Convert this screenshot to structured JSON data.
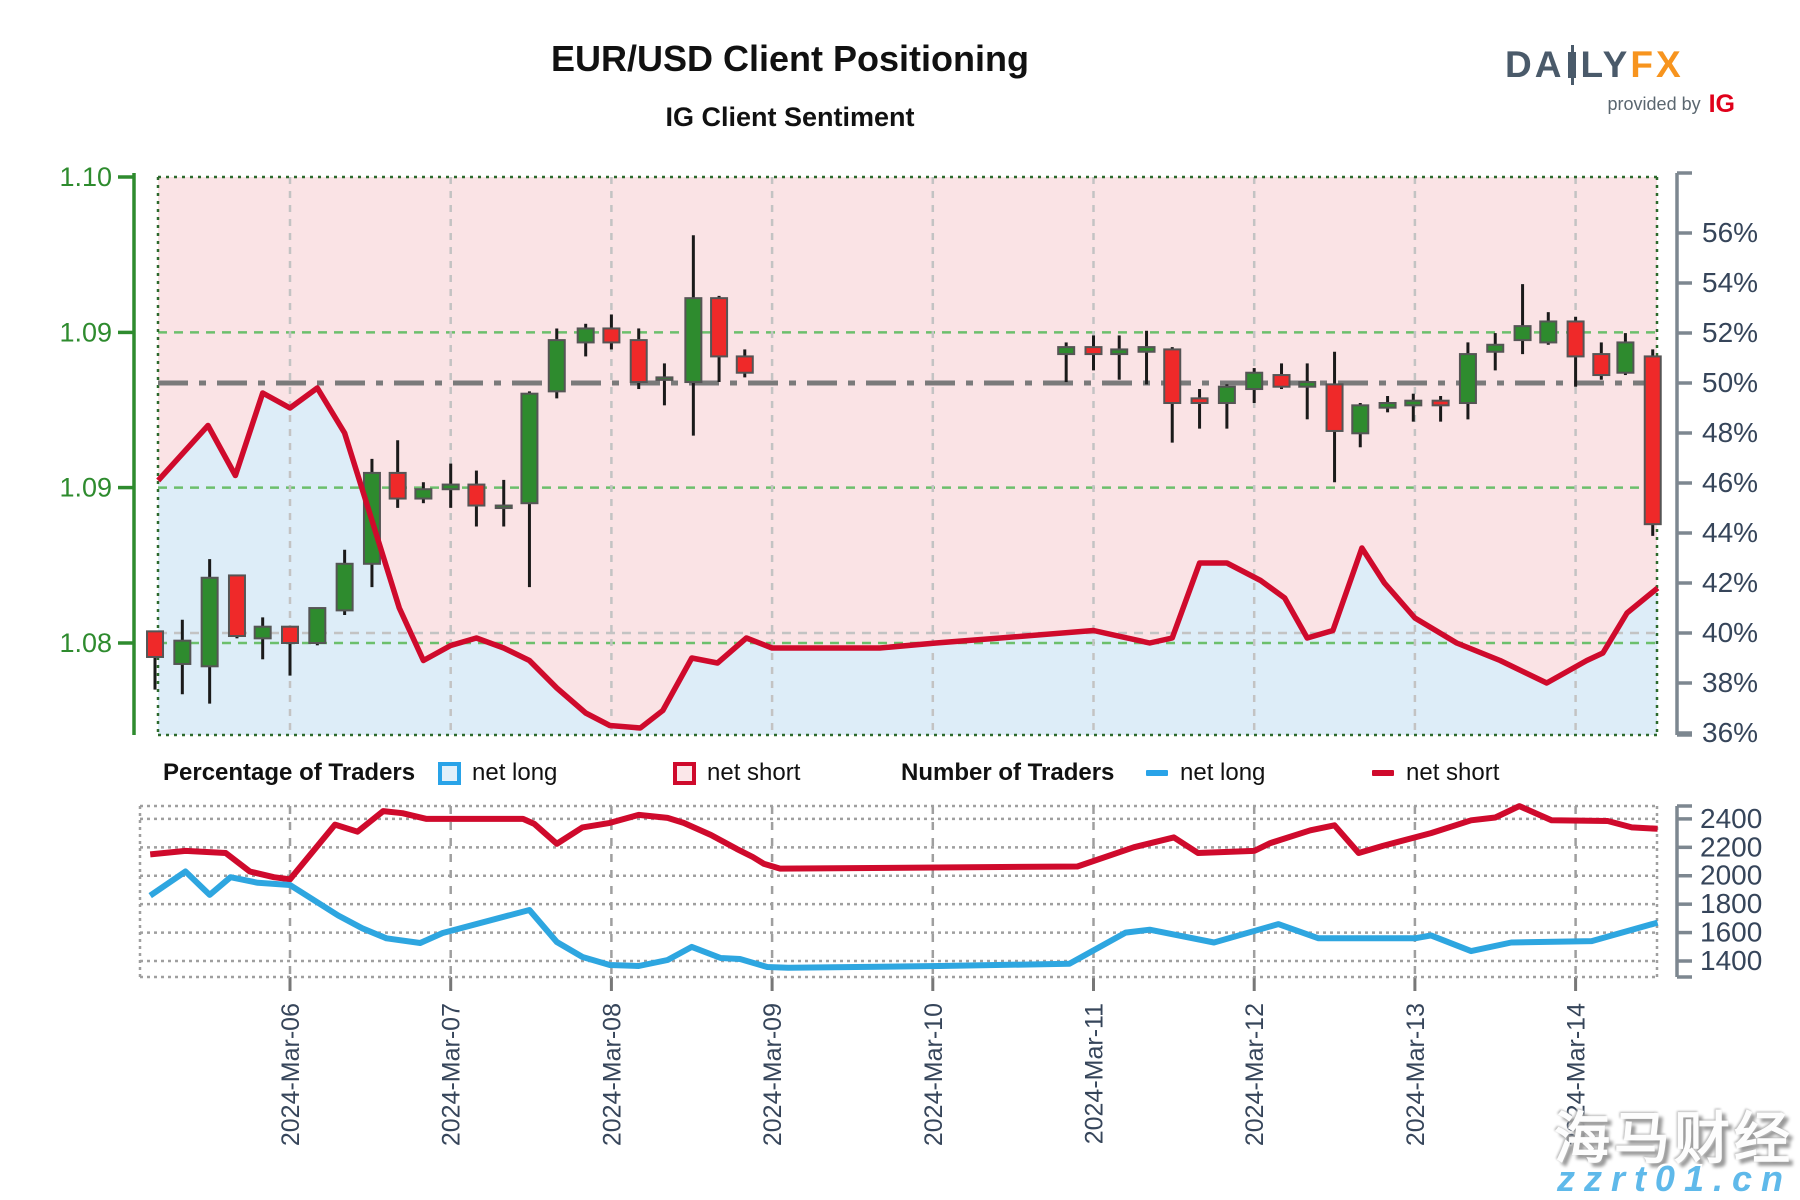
{
  "header": {
    "title": "EUR/USD Client Positioning",
    "subtitle": "IG Client Sentiment",
    "logo": {
      "brand_left": "DA",
      "brand_right": "LY",
      "brand_fx": "FX",
      "provided_by": "provided by",
      "ig": "IG"
    }
  },
  "legend": {
    "pct_label": "Percentage of Traders",
    "pct_net_long": "net long",
    "pct_net_short": "net short",
    "count_label": "Number of Traders",
    "count_net_long": "net long",
    "count_net_short": "net short"
  },
  "watermark": {
    "line1": "海马财经",
    "line2": "zzrt01.cn"
  },
  "chart_data": {
    "type": "candlestick+line",
    "title": "EUR/USD Client Positioning",
    "subtitle": "IG Client Sentiment",
    "price_axis": {
      "labels": [
        "1.10",
        "1.09",
        "1.09",
        "1.08"
      ],
      "values": [
        1.1,
        1.09333,
        1.08667,
        1.08
      ],
      "color": "#2e8b2e"
    },
    "pct_axis": {
      "labels": [
        "56%",
        "54%",
        "52%",
        "50%",
        "48%",
        "46%",
        "44%",
        "42%",
        "40%",
        "38%",
        "36%"
      ],
      "values": [
        56,
        54,
        52,
        50,
        48,
        46,
        44,
        42,
        40,
        38,
        36
      ]
    },
    "traders_axis": {
      "labels": [
        "2400",
        "2200",
        "2000",
        "1800",
        "1600",
        "1400"
      ],
      "values": [
        2400,
        2200,
        2000,
        1800,
        1600,
        1400
      ]
    },
    "x_axis": {
      "labels": [
        "2024-Mar-06",
        "2024-Mar-07",
        "2024-Mar-08",
        "2024-Mar-09",
        "2024-Mar-10",
        "2024-Mar-11",
        "2024-Mar-12",
        "2024-Mar-13",
        "2024-Mar-14"
      ],
      "days": [
        6,
        7,
        8,
        9,
        10,
        11,
        12,
        13,
        14
      ]
    },
    "reference_levels": {
      "dash_dot_pct": 50,
      "gray_dashed_pct": 40
    },
    "candles_format": [
      "day",
      "open",
      "high",
      "low",
      "close"
    ],
    "candles": [
      [
        5.16,
        1.0805,
        1.0805,
        1.078,
        1.0794
      ],
      [
        5.33,
        1.0791,
        1.081,
        1.0778,
        1.0801
      ],
      [
        5.5,
        1.079,
        1.0836,
        1.0774,
        1.0828
      ],
      [
        5.67,
        1.0829,
        1.0829,
        1.0802,
        1.0803
      ],
      [
        5.83,
        1.0802,
        1.0811,
        1.0793,
        1.0807
      ],
      [
        6.0,
        1.0807,
        1.0807,
        1.0786,
        1.08
      ],
      [
        6.17,
        1.08,
        1.0815,
        1.0799,
        1.0815
      ],
      [
        6.34,
        1.0814,
        1.084,
        1.0812,
        1.0834
      ],
      [
        6.51,
        1.0834,
        1.0879,
        1.0824,
        1.0873
      ],
      [
        6.67,
        1.0873,
        1.0887,
        1.0858,
        1.0862
      ],
      [
        6.83,
        1.0862,
        1.0869,
        1.086,
        1.0866
      ],
      [
        7.0,
        1.0866,
        1.0877,
        1.0858,
        1.0868
      ],
      [
        7.16,
        1.0868,
        1.0874,
        1.085,
        1.0859
      ],
      [
        7.33,
        1.0858,
        1.087,
        1.085,
        1.0859
      ],
      [
        7.49,
        1.086,
        1.0908,
        1.0824,
        1.0907
      ],
      [
        7.66,
        1.0908,
        1.0935,
        1.0905,
        1.093
      ],
      [
        7.84,
        1.0929,
        1.0937,
        1.0923,
        1.0935
      ],
      [
        8.0,
        1.0935,
        1.0941,
        1.0926,
        1.0929
      ],
      [
        8.17,
        1.093,
        1.0935,
        1.0909,
        1.0912
      ],
      [
        8.33,
        1.0913,
        1.092,
        1.0902,
        1.0914
      ],
      [
        8.51,
        1.0912,
        1.0975,
        1.0889,
        1.0948
      ],
      [
        8.67,
        1.0948,
        1.0949,
        1.0912,
        1.0923
      ],
      [
        8.83,
        1.0923,
        1.0926,
        1.0914,
        1.0916
      ],
      [
        10.83,
        1.0924,
        1.0929,
        1.0912,
        1.0927
      ],
      [
        11.0,
        1.0927,
        1.0932,
        1.0917,
        1.0924
      ],
      [
        11.16,
        1.0924,
        1.0932,
        1.0913,
        1.0926
      ],
      [
        11.33,
        1.0925,
        1.0934,
        1.0911,
        1.0927
      ],
      [
        11.49,
        1.0926,
        1.0927,
        1.0886,
        1.0903
      ],
      [
        11.66,
        1.0905,
        1.0909,
        1.0892,
        1.0903
      ],
      [
        11.83,
        1.0903,
        1.0911,
        1.0892,
        1.091
      ],
      [
        12.0,
        1.0909,
        1.0918,
        1.0903,
        1.0916
      ],
      [
        12.17,
        1.0915,
        1.092,
        1.0909,
        1.091
      ],
      [
        12.33,
        1.091,
        1.092,
        1.0896,
        1.0912
      ],
      [
        12.5,
        1.0911,
        1.0925,
        1.0869,
        1.0891
      ],
      [
        12.66,
        1.089,
        1.0903,
        1.0884,
        1.0902
      ],
      [
        12.83,
        1.0901,
        1.0906,
        1.0899,
        1.0903
      ],
      [
        12.99,
        1.0902,
        1.0907,
        1.0895,
        1.0904
      ],
      [
        13.16,
        1.0904,
        1.0906,
        1.0895,
        1.0902
      ],
      [
        13.33,
        1.0903,
        1.0929,
        1.0896,
        1.0924
      ],
      [
        13.5,
        1.0925,
        1.0933,
        1.0917,
        1.0928
      ],
      [
        13.67,
        1.093,
        1.0954,
        1.0924,
        1.0936
      ],
      [
        13.83,
        1.0929,
        1.0942,
        1.0928,
        1.0938
      ],
      [
        14.0,
        1.0938,
        1.094,
        1.091,
        1.0923
      ],
      [
        14.16,
        1.0924,
        1.0929,
        1.0913,
        1.0915
      ],
      [
        14.31,
        1.0916,
        1.0933,
        1.0915,
        1.0929
      ],
      [
        14.48,
        1.0923,
        1.0926,
        1.0846,
        1.0851
      ]
    ],
    "net_short_pct_line": [
      [
        5.18,
        46.1
      ],
      [
        5.49,
        48.3
      ],
      [
        5.66,
        46.3
      ],
      [
        5.83,
        49.6
      ],
      [
        6.0,
        49.0
      ],
      [
        6.17,
        49.8
      ],
      [
        6.34,
        48.0
      ],
      [
        6.51,
        44.5
      ],
      [
        6.68,
        41.0
      ],
      [
        6.83,
        38.9
      ],
      [
        7.0,
        39.5
      ],
      [
        7.16,
        39.8
      ],
      [
        7.33,
        39.4
      ],
      [
        7.49,
        38.9
      ],
      [
        7.66,
        37.8
      ],
      [
        7.84,
        36.8
      ],
      [
        7.99,
        36.3
      ],
      [
        8.18,
        36.2
      ],
      [
        8.32,
        36.9
      ],
      [
        8.5,
        39.0
      ],
      [
        8.66,
        38.8
      ],
      [
        8.84,
        39.8
      ],
      [
        9.0,
        39.4
      ],
      [
        9.67,
        39.4
      ],
      [
        10.02,
        39.6
      ],
      [
        10.42,
        39.8
      ],
      [
        11.0,
        40.1
      ],
      [
        11.35,
        39.6
      ],
      [
        11.49,
        39.8
      ],
      [
        11.66,
        42.8
      ],
      [
        11.83,
        42.8
      ],
      [
        12.04,
        42.1
      ],
      [
        12.19,
        41.4
      ],
      [
        12.33,
        39.8
      ],
      [
        12.49,
        40.1
      ],
      [
        12.67,
        43.4
      ],
      [
        12.81,
        42.0
      ],
      [
        13.0,
        40.6
      ],
      [
        13.26,
        39.6
      ],
      [
        13.53,
        38.9
      ],
      [
        13.82,
        38.0
      ],
      [
        14.07,
        38.9
      ],
      [
        14.17,
        39.2
      ],
      [
        14.32,
        40.8
      ],
      [
        14.51,
        41.8
      ]
    ],
    "net_short_count_line": [
      [
        5.13,
        2150
      ],
      [
        5.35,
        2175
      ],
      [
        5.6,
        2160
      ],
      [
        5.75,
        2030
      ],
      [
        5.9,
        1990
      ],
      [
        6.0,
        1975
      ],
      [
        6.28,
        2360
      ],
      [
        6.42,
        2310
      ],
      [
        6.58,
        2455
      ],
      [
        6.7,
        2440
      ],
      [
        6.85,
        2400
      ],
      [
        7.45,
        2400
      ],
      [
        7.52,
        2365
      ],
      [
        7.66,
        2225
      ],
      [
        7.82,
        2340
      ],
      [
        7.99,
        2372
      ],
      [
        8.17,
        2428
      ],
      [
        8.35,
        2407
      ],
      [
        8.45,
        2372
      ],
      [
        8.62,
        2287
      ],
      [
        8.78,
        2189
      ],
      [
        8.88,
        2132
      ],
      [
        8.95,
        2083
      ],
      [
        9.05,
        2050
      ],
      [
        10.9,
        2065
      ],
      [
        11.25,
        2200
      ],
      [
        11.5,
        2270
      ],
      [
        11.65,
        2160
      ],
      [
        12.0,
        2175
      ],
      [
        12.1,
        2230
      ],
      [
        12.35,
        2320
      ],
      [
        12.5,
        2355
      ],
      [
        12.65,
        2160
      ],
      [
        12.8,
        2210
      ],
      [
        13.1,
        2300
      ],
      [
        13.35,
        2390
      ],
      [
        13.5,
        2410
      ],
      [
        13.65,
        2490
      ],
      [
        13.85,
        2390
      ],
      [
        14.2,
        2385
      ],
      [
        14.35,
        2340
      ],
      [
        14.51,
        2330
      ]
    ],
    "net_long_count_line": [
      [
        5.13,
        1860
      ],
      [
        5.35,
        2030
      ],
      [
        5.5,
        1865
      ],
      [
        5.63,
        1990
      ],
      [
        5.8,
        1950
      ],
      [
        6.0,
        1935
      ],
      [
        6.3,
        1720
      ],
      [
        6.45,
        1630
      ],
      [
        6.6,
        1560
      ],
      [
        6.81,
        1527
      ],
      [
        6.95,
        1597
      ],
      [
        7.49,
        1759
      ],
      [
        7.66,
        1534
      ],
      [
        7.82,
        1428
      ],
      [
        7.99,
        1372
      ],
      [
        8.17,
        1365
      ],
      [
        8.35,
        1407
      ],
      [
        8.5,
        1499
      ],
      [
        8.68,
        1421
      ],
      [
        8.8,
        1414
      ],
      [
        8.97,
        1358
      ],
      [
        9.1,
        1352
      ],
      [
        10.04,
        1365
      ],
      [
        10.85,
        1380
      ],
      [
        11.2,
        1600
      ],
      [
        11.35,
        1620
      ],
      [
        11.75,
        1530
      ],
      [
        12.15,
        1660
      ],
      [
        12.4,
        1560
      ],
      [
        13.0,
        1560
      ],
      [
        13.1,
        1580
      ],
      [
        13.35,
        1470
      ],
      [
        13.6,
        1530
      ],
      [
        14.1,
        1540
      ],
      [
        14.51,
        1670
      ]
    ],
    "colors": {
      "candle_up": "#2e8b2e",
      "candle_down": "#ef2929",
      "candle_stroke": "#555555",
      "wick": "#1a1a1a",
      "sentiment_line": "#cf0a2c",
      "net_long_line": "#2ea6e0",
      "fill_above": "#fae3e5",
      "fill_below": "#ddedf8",
      "price_axis": "#2e8b2e",
      "pct_axis_text": "#36455a",
      "grid_green": "#6cbf6c",
      "grid_gray": "#c3c3c3",
      "border_green": "#2d6a2d",
      "dash_dot": "#7a7a7a",
      "panel_grid": "#9f9f9f"
    }
  }
}
